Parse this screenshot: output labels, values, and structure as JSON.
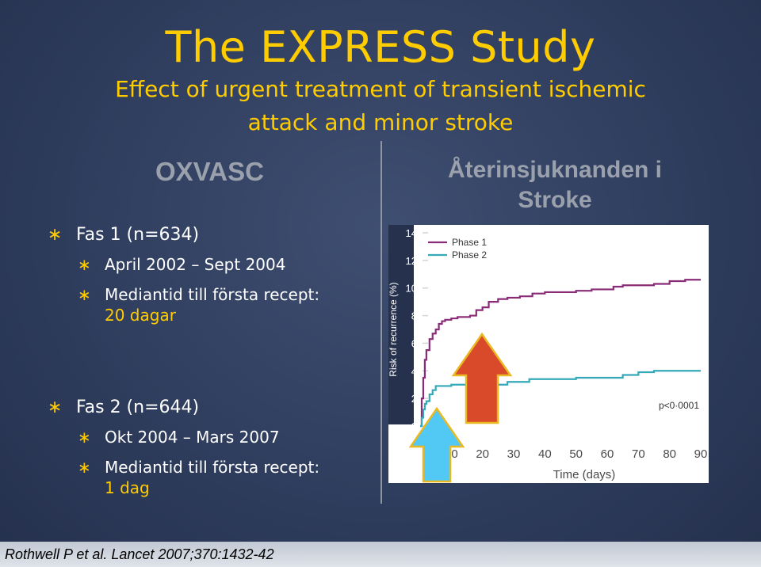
{
  "title": "The EXPRESS Study",
  "subtitle_line1": "Effect of urgent treatment of transient ischemic",
  "subtitle_line2": "attack and minor stroke",
  "left_heading": "OXVASC",
  "chart_heading_line1": "Återinsjuknanden i",
  "chart_heading_line2": "Stroke",
  "phase1": {
    "bullet": "Fas 1 (n=634)",
    "period": "April 2002 – Sept 2004",
    "median_label": "Mediantid till första recept:",
    "median_value": "20 dagar"
  },
  "phase2": {
    "bullet": "Fas 2 (n=644)",
    "period": "Okt 2004 – Mars 2007",
    "median_label": "Mediantid till första recept:",
    "median_value": "1 dag"
  },
  "citation": "Rothwell P et al. Lancet 2007;370:1432-42",
  "bullet_symbol": "∗",
  "colors": {
    "accent_yellow": "#ffcc00",
    "phase1": "#8a2b78",
    "phase2": "#35a9b9",
    "arrow_red": "#d94a2b",
    "arrow_blue": "#52c8f5"
  },
  "chart_data": {
    "type": "line",
    "xlabel": "Time (days)",
    "ylabel": "Risk of recurrence (%)",
    "xlim": [
      0,
      90
    ],
    "ylim": [
      0,
      14
    ],
    "x_ticks": [
      10,
      20,
      30,
      40,
      50,
      60,
      70,
      80,
      90
    ],
    "y_ticks": [
      0,
      2,
      4,
      6,
      8,
      10,
      12,
      14
    ],
    "annotation": "p<0·0001",
    "series": [
      {
        "name": "Phase 1",
        "x": [
          0,
          0.5,
          1,
          1.5,
          2,
          3,
          4,
          5,
          6,
          7,
          8,
          10,
          12,
          14,
          16,
          18,
          20,
          22,
          25,
          28,
          32,
          36,
          40,
          50,
          55,
          60,
          62,
          65,
          70,
          75,
          80,
          83,
          85,
          90
        ],
        "y": [
          0,
          2.0,
          3.5,
          4.8,
          5.5,
          6.3,
          6.7,
          7.0,
          7.4,
          7.6,
          7.7,
          7.8,
          7.9,
          7.9,
          8.0,
          8.4,
          8.6,
          9.0,
          9.2,
          9.3,
          9.4,
          9.6,
          9.7,
          9.8,
          9.9,
          9.9,
          10.1,
          10.2,
          10.2,
          10.3,
          10.5,
          10.5,
          10.6,
          10.6
        ]
      },
      {
        "name": "Phase 2",
        "x": [
          0,
          0.5,
          1,
          1.5,
          2,
          3,
          4,
          5,
          10,
          15,
          20,
          28,
          35,
          45,
          50,
          55,
          62,
          65,
          70,
          75,
          90
        ],
        "y": [
          0,
          0.6,
          1.2,
          1.6,
          1.8,
          2.3,
          2.6,
          2.9,
          3.0,
          3.0,
          3.0,
          3.2,
          3.4,
          3.4,
          3.5,
          3.5,
          3.5,
          3.7,
          3.9,
          4.0,
          4.0
        ]
      }
    ]
  }
}
